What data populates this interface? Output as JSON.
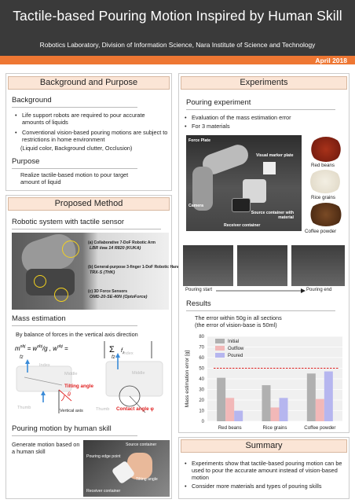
{
  "header": {
    "title": "Tactile-based Pouring Motion Inspired by Human Skill",
    "affiliation": "Robotics Laboratory, Division of Information Science, Nara Institute of Science and Technology",
    "date": "April 2018"
  },
  "background_purpose": {
    "heading": "Background and Purpose",
    "background_title": "Background",
    "bullets": [
      "Life support robots are required to pour accurate amounts of liquids",
      "Conventional vision-based pouring motions are subject to restrictions in home environment"
    ],
    "note": "(Liquid color, Background clutter, Occlusion)",
    "purpose_title": "Purpose",
    "purpose_text": "Realize tactile-based motion to pour target amount of liquid"
  },
  "method": {
    "heading": "Proposed Method",
    "robot_title": "Robotic system with tactile sensor",
    "robot_labels": [
      {
        "name": "(a) Collaborative 7-DoF Robotic Arm",
        "model": "LBR iiwa 14 R820 (KUKA)"
      },
      {
        "name": "(b) General-purpose 3-finger 1-DoF Robotic Hand",
        "model": "TRX-S (THK)"
      },
      {
        "name": "(c) 3D Force Sensors",
        "model": "OMD-20-SE-40N (OptoForce)"
      }
    ],
    "mass_title": "Mass estimation",
    "mass_text": "By balance of forces in the vertical axis direction",
    "diagram_labels": {
      "tilting": "Tilting angle",
      "contact": "Contact angle φ",
      "vertical": "Vertical axis",
      "thumb": "Thumb",
      "index": "Index",
      "middle": "Middle",
      "fz": "fz",
      "theta": "θ"
    },
    "pouring_title": "Pouring motion by human skill",
    "pouring_text": "Generate motion based on a human skill",
    "photo_labels": {
      "source": "Source container",
      "edge": "Pouring edge point",
      "tilt": "Tilting angle",
      "receiver": "Receiver container"
    }
  },
  "experiments": {
    "heading": "Experiments",
    "pouring_title": "Pouring experiment",
    "bullets": [
      "Evaluation of the mass estimation error",
      "For 3 materials"
    ],
    "setup_labels": {
      "force": "Force Plate",
      "marker": "Visual marker plate",
      "camera": "Camera",
      "source": "Source container with material",
      "receiver": "Receiver container"
    },
    "materials": [
      "Red beans",
      "Rice grains",
      "Coffee powder"
    ],
    "sequence": {
      "start": "Pouring start",
      "end": "Pouring end"
    },
    "results_title": "Results",
    "results_text": [
      "The error within 50g in all sections",
      "(the error of vision-base is 50ml)"
    ]
  },
  "chart_data": {
    "type": "bar",
    "categories": [
      "Red beans",
      "Rice grains",
      "Coffee powder"
    ],
    "series": [
      {
        "name": "Initial",
        "values": [
          41,
          34,
          45
        ],
        "color": "#b0b0b0"
      },
      {
        "name": "Outflow",
        "values": [
          22,
          13,
          21
        ],
        "color": "#f2b8b8"
      },
      {
        "name": "Poured",
        "values": [
          10,
          22,
          47
        ],
        "color": "#b6b6ef"
      }
    ],
    "ylabel": "Mass estimation error [g]",
    "ylim": [
      0,
      80
    ],
    "yticks": [
      0,
      10,
      20,
      30,
      40,
      50,
      60,
      70,
      80
    ],
    "threshold": 50,
    "threshold_color": "#dd2222",
    "legend": "top-left"
  },
  "summary": {
    "heading": "Summary",
    "bullets": [
      "Experiments show that tactile-based pouring motion can be used to pour the accurate amount instead of vision-based motion",
      "Consider more materials and types of pouring skills"
    ]
  }
}
